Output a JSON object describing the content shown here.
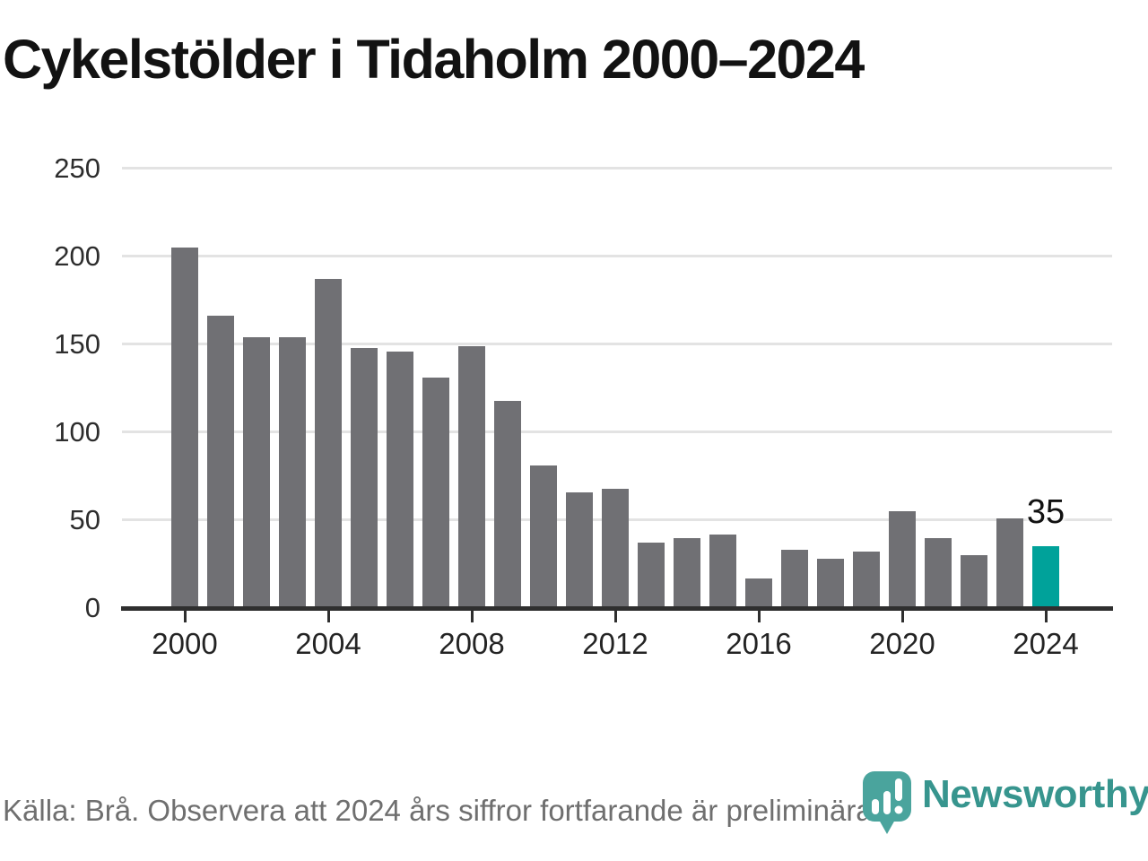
{
  "title": "Cykelstölder i Tidaholm 2000–2024",
  "source_note": "Källa: Brå. Observera att 2024 års siffror fortfarande är preliminära.",
  "annotation": {
    "label": "35",
    "year": 2024
  },
  "logo": {
    "name": "Newsworthy"
  },
  "colors": {
    "bar": "#707074",
    "highlight": "#00a29a",
    "gridline": "#e3e3e3",
    "axis": "#2f2f2f",
    "title_text": "#121212",
    "tick_label": "#2d2d2d",
    "source_text": "#6f6f6f",
    "logo_pin": "#4aa49d",
    "logo_text": "#37958e"
  },
  "chart_data": {
    "type": "bar",
    "title": "Cykelstölder i Tidaholm 2000–2024",
    "xlabel": "",
    "ylabel": "",
    "x": [
      2000,
      2001,
      2002,
      2003,
      2004,
      2005,
      2006,
      2007,
      2008,
      2009,
      2010,
      2011,
      2012,
      2013,
      2014,
      2015,
      2016,
      2017,
      2018,
      2019,
      2020,
      2021,
      2022,
      2023,
      2024
    ],
    "values": [
      205,
      166,
      154,
      154,
      187,
      148,
      146,
      131,
      149,
      118,
      81,
      66,
      68,
      37,
      40,
      42,
      17,
      33,
      28,
      32,
      55,
      40,
      30,
      51,
      35
    ],
    "highlight_index": 24,
    "highlight_label": "35",
    "ylim": [
      0,
      250
    ],
    "yticks": [
      0,
      50,
      100,
      150,
      200,
      250
    ],
    "xticks": [
      2000,
      2004,
      2008,
      2012,
      2016,
      2020,
      2024
    ],
    "grid": true,
    "legend": false
  }
}
